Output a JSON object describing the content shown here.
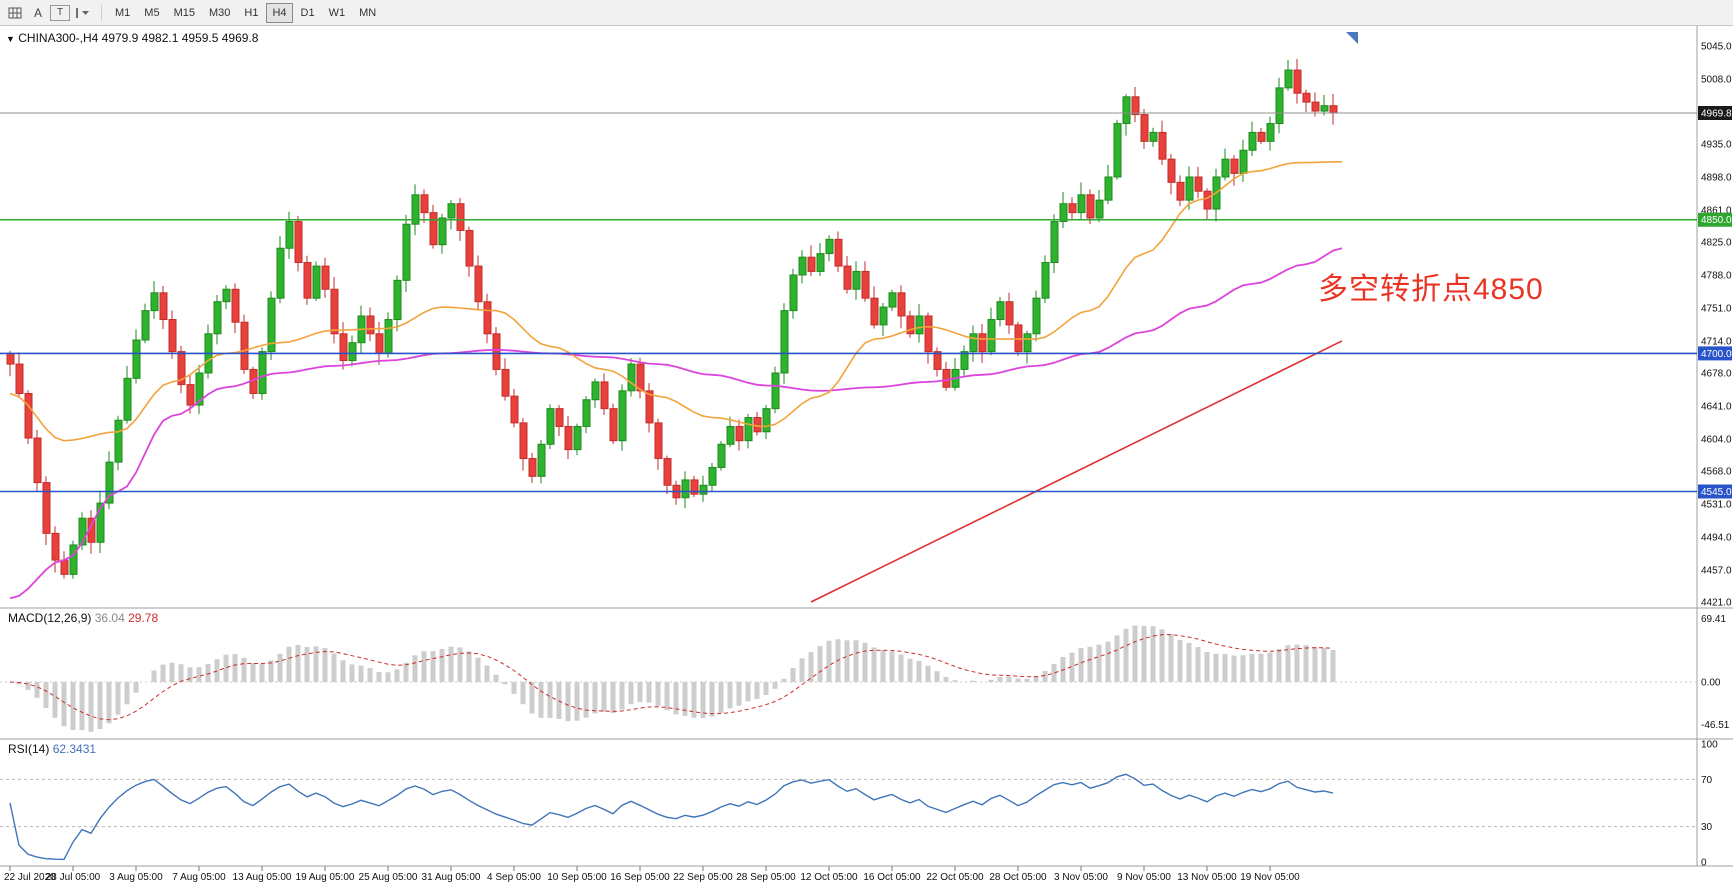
{
  "toolbar": {
    "cursor_label": "A",
    "text_label": "T",
    "timeframes": [
      "M1",
      "M5",
      "M15",
      "M30",
      "H1",
      "H4",
      "D1",
      "W1",
      "MN"
    ],
    "selected_timeframe": "H4"
  },
  "chart": {
    "collapse_arrow": "▼",
    "symbol_period": "CHINA300-,H4",
    "ohlc": "4979.9 4982.1 4959.5 4969.8",
    "annotation": "多空转折点4850",
    "macd_title": "MACD(12,26,9)",
    "macd_value_main": "36.04",
    "macd_value_signal": "29.78",
    "rsi_title": "RSI(14)",
    "rsi_value": "62.3431"
  },
  "colors": {
    "bull": "#2db32d",
    "bull_border": "#1e8a1e",
    "bear": "#e8403a",
    "bear_border": "#c22d2a",
    "ma_fast": "#f2a33c",
    "ma_slow": "#dd44dd",
    "trend": "#e03030",
    "level_green": "#2ea72e",
    "level_blue": "#2953c9",
    "current_line": "#909090",
    "current_badge": "#1a1a1a",
    "hist": "#cdcdcd",
    "signal": "#cc2d2a",
    "rsi": "#3f74b9",
    "grid": "#9aa0a6",
    "end_marker": "#4a78c2"
  },
  "chart_data": {
    "type": "candlestick",
    "symbol": "CHINA300-",
    "timeframe": "H4",
    "title": "CHINA300-,H4 4979.9 4982.1 4959.5 4969.8",
    "y_range": [
      4421.0,
      5045.0
    ],
    "current_price": 4969.8,
    "y_ticks": [
      5045.0,
      5008.0,
      4935.0,
      4898.0,
      4861.0,
      4825.0,
      4788.0,
      4751.0,
      4714.0,
      4678.0,
      4641.0,
      4604.0,
      4568.0,
      4531.0,
      4494.0,
      4457.0,
      4421.0
    ],
    "levels": [
      {
        "price": 4850.0,
        "label": "4850.0",
        "color": "#2ea72e"
      },
      {
        "price": 4700.0,
        "label": "4700.0",
        "color": "#2953c9"
      },
      {
        "price": 4545.0,
        "label": "4545.0",
        "color": "#2953c9"
      }
    ],
    "closes": [
      4688,
      4655,
      4605,
      4555,
      4498,
      4468,
      4452,
      4485,
      4515,
      4488,
      4532,
      4578,
      4625,
      4672,
      4715,
      4748,
      4768,
      4738,
      4702,
      4665,
      4642,
      4678,
      4722,
      4758,
      4772,
      4735,
      4682,
      4655,
      4702,
      4762,
      4818,
      4848,
      4802,
      4762,
      4798,
      4772,
      4722,
      4692,
      4712,
      4742,
      4722,
      4700,
      4738,
      4782,
      4845,
      4878,
      4858,
      4822,
      4852,
      4868,
      4838,
      4798,
      4758,
      4722,
      4682,
      4652,
      4622,
      4582,
      4562,
      4598,
      4638,
      4618,
      4592,
      4618,
      4648,
      4668,
      4638,
      4602,
      4658,
      4688,
      4658,
      4622,
      4582,
      4552,
      4538,
      4558,
      4542,
      4552,
      4572,
      4598,
      4618,
      4602,
      4628,
      4612,
      4638,
      4678,
      4748,
      4788,
      4808,
      4792,
      4812,
      4828,
      4798,
      4772,
      4792,
      4762,
      4732,
      4752,
      4768,
      4742,
      4722,
      4742,
      4702,
      4682,
      4662,
      4682,
      4702,
      4722,
      4702,
      4738,
      4758,
      4732,
      4702,
      4722,
      4762,
      4802,
      4848,
      4868,
      4858,
      4878,
      4852,
      4872,
      4898,
      4958,
      4988,
      4968,
      4938,
      4948,
      4918,
      4892,
      4872,
      4898,
      4882,
      4862,
      4898,
      4918,
      4902,
      4928,
      4948,
      4938,
      4958,
      4998,
      5018,
      4992,
      4982,
      4972,
      4978,
      4969.8
    ],
    "ma_orange": [
      [
        0,
        4655
      ],
      [
        6,
        4602
      ],
      [
        12,
        4612
      ],
      [
        18,
        4668
      ],
      [
        24,
        4700
      ],
      [
        30,
        4712
      ],
      [
        36,
        4726
      ],
      [
        42,
        4728
      ],
      [
        48,
        4752
      ],
      [
        54,
        4748
      ],
      [
        60,
        4708
      ],
      [
        66,
        4682
      ],
      [
        72,
        4652
      ],
      [
        78,
        4628
      ],
      [
        84,
        4618
      ],
      [
        90,
        4652
      ],
      [
        96,
        4716
      ],
      [
        102,
        4730
      ],
      [
        108,
        4716
      ],
      [
        114,
        4716
      ],
      [
        120,
        4748
      ],
      [
        126,
        4812
      ],
      [
        132,
        4872
      ],
      [
        138,
        4904
      ],
      [
        143,
        4914
      ],
      [
        148,
        4915
      ]
    ],
    "ma_magenta": [
      [
        0,
        4425
      ],
      [
        6,
        4468
      ],
      [
        12,
        4545
      ],
      [
        18,
        4630
      ],
      [
        24,
        4662
      ],
      [
        30,
        4678
      ],
      [
        36,
        4686
      ],
      [
        42,
        4692
      ],
      [
        48,
        4700
      ],
      [
        54,
        4704
      ],
      [
        60,
        4700
      ],
      [
        66,
        4696
      ],
      [
        72,
        4688
      ],
      [
        78,
        4676
      ],
      [
        84,
        4664
      ],
      [
        90,
        4658
      ],
      [
        96,
        4662
      ],
      [
        102,
        4668
      ],
      [
        108,
        4676
      ],
      [
        114,
        4686
      ],
      [
        120,
        4700
      ],
      [
        126,
        4724
      ],
      [
        132,
        4752
      ],
      [
        138,
        4778
      ],
      [
        144,
        4800
      ],
      [
        148,
        4818
      ]
    ],
    "trendline": {
      "from": [
        89,
        4421
      ],
      "to": [
        148,
        4714
      ]
    },
    "x_labels": [
      "22 Jul 2020",
      "28 Jul 05:00",
      "3 Aug 05:00",
      "7 Aug 05:00",
      "13 Aug 05:00",
      "19 Aug 05:00",
      "25 Aug 05:00",
      "31 Aug 05:00",
      "4 Sep 05:00",
      "10 Sep 05:00",
      "16 Sep 05:00",
      "22 Sep 05:00",
      "28 Sep 05:00",
      "12 Oct 05:00",
      "16 Oct 05:00",
      "22 Oct 05:00",
      "28 Oct 05:00",
      "3 Nov 05:00",
      "9 Nov 05:00",
      "13 Nov 05:00",
      "19 Nov 05:00"
    ],
    "x_label_indices": [
      0,
      7,
      14,
      21,
      28,
      35,
      42,
      49,
      56,
      63,
      70,
      77,
      84,
      91,
      98,
      105,
      112,
      119,
      126,
      133,
      140
    ],
    "indicators": {
      "macd": {
        "label": "MACD(12,26,9)",
        "main_value": 36.04,
        "signal_value": 29.78,
        "scale_labels": [
          [
            "69.41",
            69.41
          ],
          [
            "0.00",
            0
          ],
          [
            "-46.51",
            -46.51
          ]
        ]
      },
      "rsi": {
        "label": "RSI(14)",
        "value": 62.3431,
        "scale_labels": [
          [
            "100",
            100
          ],
          [
            "70",
            70
          ],
          [
            "30",
            30
          ],
          [
            "0",
            0
          ]
        ],
        "levels": [
          70,
          30
        ]
      }
    }
  }
}
